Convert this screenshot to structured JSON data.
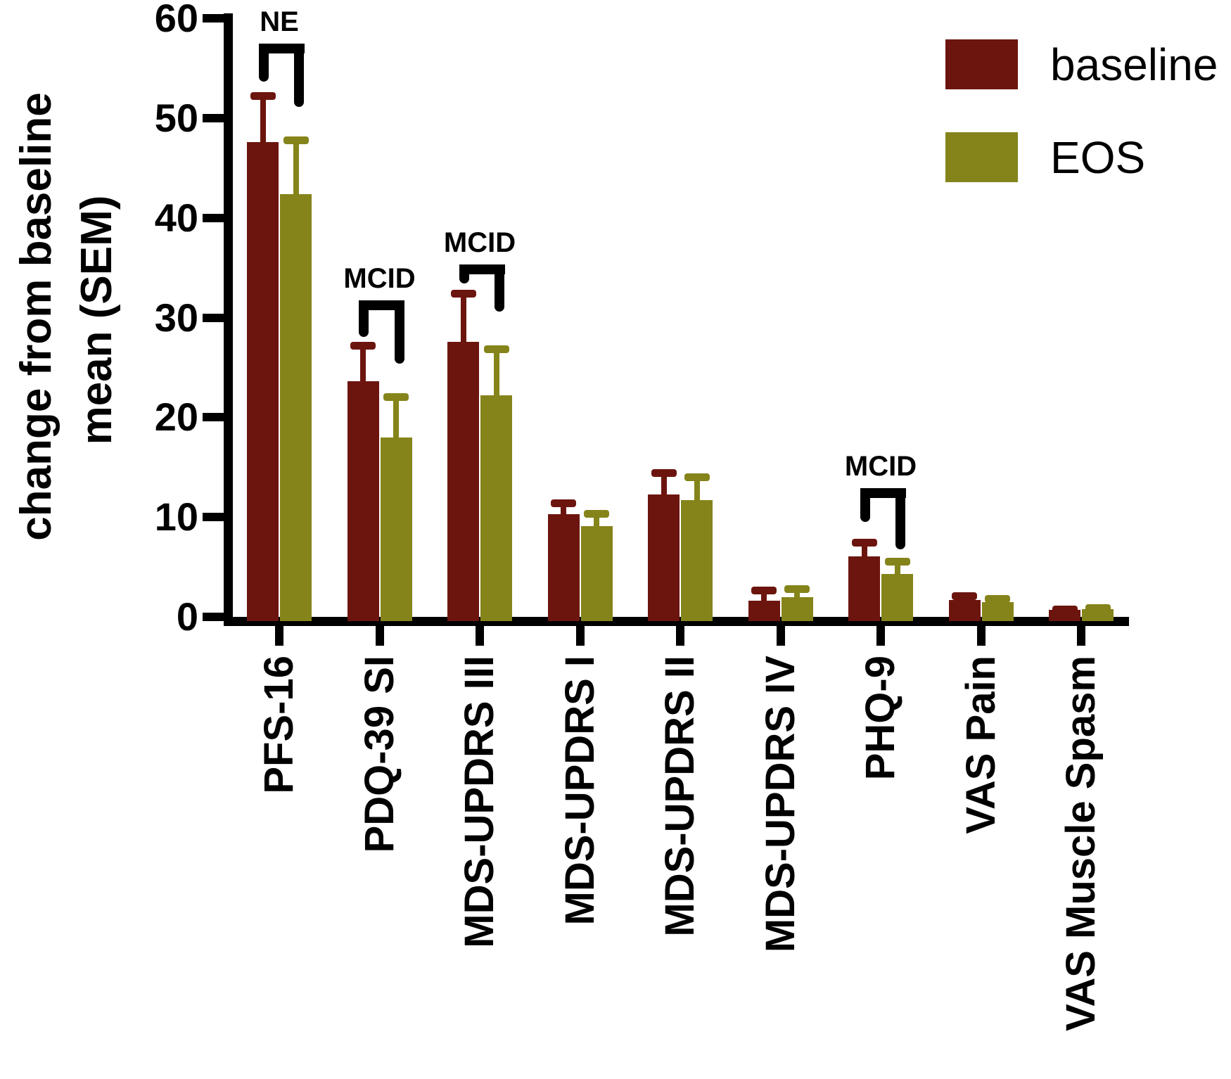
{
  "chart_data": {
    "type": "bar",
    "title": "",
    "ylabel_line1": "change from baseline",
    "ylabel_line2": "mean (SEM)",
    "xlabel": "",
    "ylim": [
      0,
      60
    ],
    "yticks": [
      0,
      10,
      20,
      30,
      40,
      50,
      60
    ],
    "grid": "off",
    "error_bar_type": "SEM, upper only",
    "categories": [
      "PFS-16",
      "PDQ-39 SI",
      "MDS-UPDRS III",
      "MDS-UPDRS I",
      "MDS-UPDRS II",
      "MDS-UPDRS IV",
      "PHQ-9",
      "VAS Pain",
      "VAS Muscle Spasm"
    ],
    "series": [
      {
        "name": "baseline",
        "color": "#6C150F",
        "values": [
          47.6,
          23.6,
          27.6,
          10.3,
          12.3,
          1.6,
          6.1,
          1.7,
          0.7
        ],
        "sem": [
          5.0,
          4.0,
          5.2,
          1.5,
          2.5,
          1.4,
          1.7,
          0.8,
          0.4
        ]
      },
      {
        "name": "EOS",
        "color": "#85841B",
        "values": [
          42.4,
          18.0,
          22.2,
          9.1,
          11.7,
          2.0,
          4.3,
          1.5,
          0.8
        ],
        "sem": [
          5.8,
          4.4,
          5.0,
          1.6,
          2.7,
          1.2,
          1.6,
          0.7,
          0.5
        ]
      }
    ],
    "annotations": [
      {
        "label": "NE",
        "category": "PFS-16",
        "y_top": 57.5,
        "y_left_end": 53.7,
        "y_right_end": 51.1
      },
      {
        "label": "MCID",
        "category": "PDQ-39 SI",
        "y_top": 31.7,
        "y_left_end": 28.1,
        "y_right_end": 25.4
      },
      {
        "label": "MCID",
        "category": "MDS-UPDRS III",
        "y_top": 35.3,
        "y_left_end": 33.4,
        "y_right_end": 30.6
      },
      {
        "label": "MCID",
        "category": "PHQ-9",
        "y_top": 12.9,
        "y_left_end": 9.5,
        "y_right_end": 6.8
      }
    ],
    "legend": {
      "position": "top-right"
    }
  }
}
